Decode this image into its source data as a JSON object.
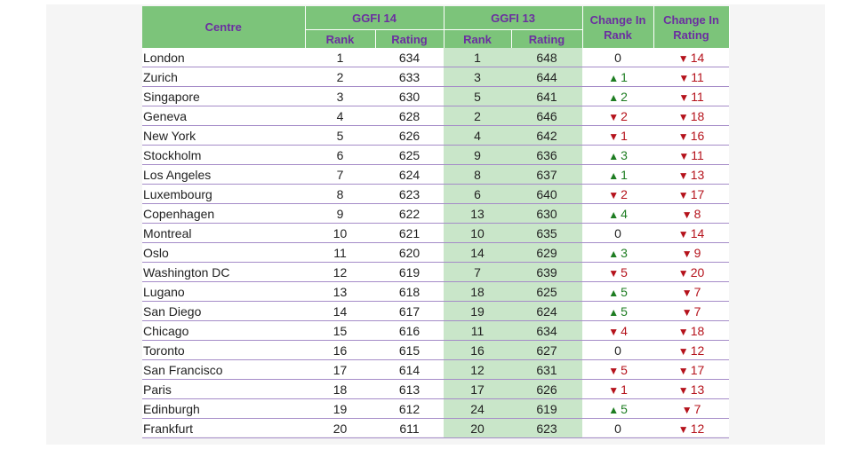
{
  "header": {
    "centre": "Centre",
    "ggfi14": "GGFI 14",
    "ggfi13": "GGFI 13",
    "rank": "Rank",
    "rating": "Rating",
    "change_rank_1": "Change In",
    "change_rank_2": "Rank",
    "change_rating_1": "Change In",
    "change_rating_2": "Rating"
  },
  "colors": {
    "up": "#1e7d22",
    "down": "#b5121b",
    "header_bg": "#7cc47a",
    "header_text": "#6b2fa0"
  },
  "rows": [
    {
      "centre": "London",
      "rank14": "1",
      "rating14": "634",
      "rank13": "1",
      "rating13": "648",
      "chg_rank_dir": "none",
      "chg_rank": "0",
      "chg_rating_dir": "down",
      "chg_rating": "14"
    },
    {
      "centre": "Zurich",
      "rank14": "2",
      "rating14": "633",
      "rank13": "3",
      "rating13": "644",
      "chg_rank_dir": "up",
      "chg_rank": "1",
      "chg_rating_dir": "down",
      "chg_rating": "11"
    },
    {
      "centre": "Singapore",
      "rank14": "3",
      "rating14": "630",
      "rank13": "5",
      "rating13": "641",
      "chg_rank_dir": "up",
      "chg_rank": "2",
      "chg_rating_dir": "down",
      "chg_rating": "11"
    },
    {
      "centre": "Geneva",
      "rank14": "4",
      "rating14": "628",
      "rank13": "2",
      "rating13": "646",
      "chg_rank_dir": "down",
      "chg_rank": "2",
      "chg_rating_dir": "down",
      "chg_rating": "18"
    },
    {
      "centre": "New York",
      "rank14": "5",
      "rating14": "626",
      "rank13": "4",
      "rating13": "642",
      "chg_rank_dir": "down",
      "chg_rank": "1",
      "chg_rating_dir": "down",
      "chg_rating": "16"
    },
    {
      "centre": "Stockholm",
      "rank14": "6",
      "rating14": "625",
      "rank13": "9",
      "rating13": "636",
      "chg_rank_dir": "up",
      "chg_rank": "3",
      "chg_rating_dir": "down",
      "chg_rating": "11"
    },
    {
      "centre": "Los Angeles",
      "rank14": "7",
      "rating14": "624",
      "rank13": "8",
      "rating13": "637",
      "chg_rank_dir": "up",
      "chg_rank": "1",
      "chg_rating_dir": "down",
      "chg_rating": "13"
    },
    {
      "centre": "Luxembourg",
      "rank14": "8",
      "rating14": "623",
      "rank13": "6",
      "rating13": "640",
      "chg_rank_dir": "down",
      "chg_rank": "2",
      "chg_rating_dir": "down",
      "chg_rating": "17"
    },
    {
      "centre": "Copenhagen",
      "rank14": "9",
      "rating14": "622",
      "rank13": "13",
      "rating13": "630",
      "chg_rank_dir": "up",
      "chg_rank": "4",
      "chg_rating_dir": "down",
      "chg_rating": "8"
    },
    {
      "centre": "Montreal",
      "rank14": "10",
      "rating14": "621",
      "rank13": "10",
      "rating13": "635",
      "chg_rank_dir": "none",
      "chg_rank": "0",
      "chg_rating_dir": "down",
      "chg_rating": "14"
    },
    {
      "centre": "Oslo",
      "rank14": "11",
      "rating14": "620",
      "rank13": "14",
      "rating13": "629",
      "chg_rank_dir": "up",
      "chg_rank": "3",
      "chg_rating_dir": "down",
      "chg_rating": "9"
    },
    {
      "centre": "Washington DC",
      "rank14": "12",
      "rating14": "619",
      "rank13": "7",
      "rating13": "639",
      "chg_rank_dir": "down",
      "chg_rank": "5",
      "chg_rating_dir": "down",
      "chg_rating": "20"
    },
    {
      "centre": "Lugano",
      "rank14": "13",
      "rating14": "618",
      "rank13": "18",
      "rating13": "625",
      "chg_rank_dir": "up",
      "chg_rank": "5",
      "chg_rating_dir": "down",
      "chg_rating": "7"
    },
    {
      "centre": "San Diego",
      "rank14": "14",
      "rating14": "617",
      "rank13": "19",
      "rating13": "624",
      "chg_rank_dir": "up",
      "chg_rank": "5",
      "chg_rating_dir": "down",
      "chg_rating": "7"
    },
    {
      "centre": "Chicago",
      "rank14": "15",
      "rating14": "616",
      "rank13": "11",
      "rating13": "634",
      "chg_rank_dir": "down",
      "chg_rank": "4",
      "chg_rating_dir": "down",
      "chg_rating": "18"
    },
    {
      "centre": "Toronto",
      "rank14": "16",
      "rating14": "615",
      "rank13": "16",
      "rating13": "627",
      "chg_rank_dir": "none",
      "chg_rank": "0",
      "chg_rating_dir": "down",
      "chg_rating": "12"
    },
    {
      "centre": "San Francisco",
      "rank14": "17",
      "rating14": "614",
      "rank13": "12",
      "rating13": "631",
      "chg_rank_dir": "down",
      "chg_rank": "5",
      "chg_rating_dir": "down",
      "chg_rating": "17"
    },
    {
      "centre": "Paris",
      "rank14": "18",
      "rating14": "613",
      "rank13": "17",
      "rating13": "626",
      "chg_rank_dir": "down",
      "chg_rank": "1",
      "chg_rating_dir": "down",
      "chg_rating": "13"
    },
    {
      "centre": "Edinburgh",
      "rank14": "19",
      "rating14": "612",
      "rank13": "24",
      "rating13": "619",
      "chg_rank_dir": "up",
      "chg_rank": "5",
      "chg_rating_dir": "down",
      "chg_rating": "7"
    },
    {
      "centre": "Frankfurt",
      "rank14": "20",
      "rating14": "611",
      "rank13": "20",
      "rating13": "623",
      "chg_rank_dir": "none",
      "chg_rank": "0",
      "chg_rating_dir": "down",
      "chg_rating": "12"
    }
  ]
}
